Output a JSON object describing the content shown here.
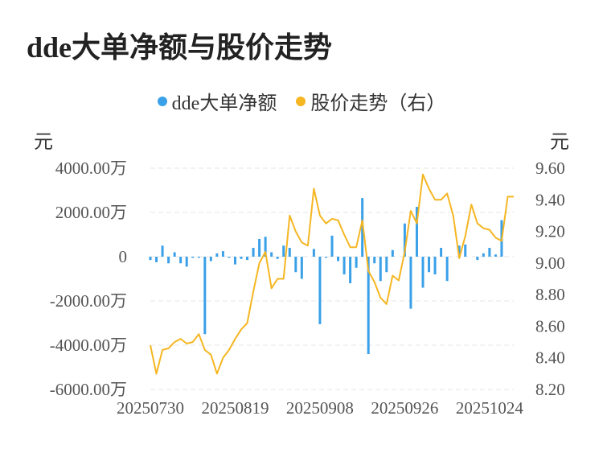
{
  "chart_data": {
    "type": "bar+line",
    "title": "dde大单净额与股价走势",
    "legend": [
      {
        "name": "dde大单净额",
        "color": "#3aa0e8"
      },
      {
        "name": "股价走势（右）",
        "color": "#f5b622"
      }
    ],
    "left_unit": "元",
    "right_unit": "元",
    "left_axis": {
      "min": -6000,
      "max": 4000,
      "ticks": [
        4000,
        2000,
        0,
        -2000,
        -4000,
        -6000
      ],
      "tick_labels": [
        "4000.00万",
        "2000.00万",
        "0",
        "-2000.00万",
        "-4000.00万",
        "-6000.00万"
      ]
    },
    "right_axis": {
      "min": 8.2,
      "max": 9.6,
      "ticks": [
        9.6,
        9.4,
        9.2,
        9.0,
        8.8,
        8.6,
        8.4,
        8.2
      ],
      "tick_labels": [
        "9.60",
        "9.40",
        "9.20",
        "9.00",
        "8.80",
        "8.60",
        "8.40",
        "8.20"
      ]
    },
    "x_tick_labels": [
      {
        "index": 0,
        "label": "20250730"
      },
      {
        "index": 14,
        "label": "20250819"
      },
      {
        "index": 28,
        "label": "20250908"
      },
      {
        "index": 42,
        "label": "20250926"
      },
      {
        "index": 56,
        "label": "20251024"
      }
    ],
    "count": 61,
    "grid": true,
    "series": [
      {
        "name": "dde大单净额",
        "kind": "bar",
        "axis": "left",
        "values": [
          -150,
          -250,
          500,
          -300,
          200,
          -300,
          -450,
          -50,
          -50,
          -3500,
          -200,
          150,
          250,
          -50,
          -350,
          -100,
          -150,
          400,
          800,
          900,
          200,
          -100,
          500,
          400,
          -700,
          -1000,
          0,
          350,
          -3050,
          -50,
          950,
          -200,
          -800,
          -1200,
          -500,
          2650,
          -4400,
          -300,
          -1100,
          -700,
          300,
          0,
          1500,
          -2350,
          2250,
          -1400,
          -700,
          -800,
          400,
          -1100,
          0,
          500,
          550,
          0,
          -150,
          150,
          400,
          100,
          1650,
          0,
          0
        ]
      },
      {
        "name": "股价走势（右）",
        "kind": "line",
        "axis": "right",
        "values": [
          8.48,
          8.3,
          8.45,
          8.46,
          8.5,
          8.52,
          8.49,
          8.5,
          8.55,
          8.45,
          8.42,
          8.3,
          8.4,
          8.45,
          8.52,
          8.58,
          8.62,
          8.82,
          9.0,
          9.07,
          8.84,
          8.9,
          8.9,
          9.3,
          9.2,
          9.13,
          9.11,
          9.47,
          9.3,
          9.25,
          9.28,
          9.27,
          9.18,
          9.1,
          9.1,
          9.27,
          8.95,
          8.88,
          8.78,
          8.74,
          8.92,
          8.89,
          9.07,
          9.33,
          9.25,
          9.56,
          9.47,
          9.4,
          9.4,
          9.44,
          9.3,
          9.03,
          9.17,
          9.37,
          9.25,
          9.22,
          9.21,
          9.16,
          9.14,
          9.42,
          9.42
        ]
      }
    ]
  }
}
